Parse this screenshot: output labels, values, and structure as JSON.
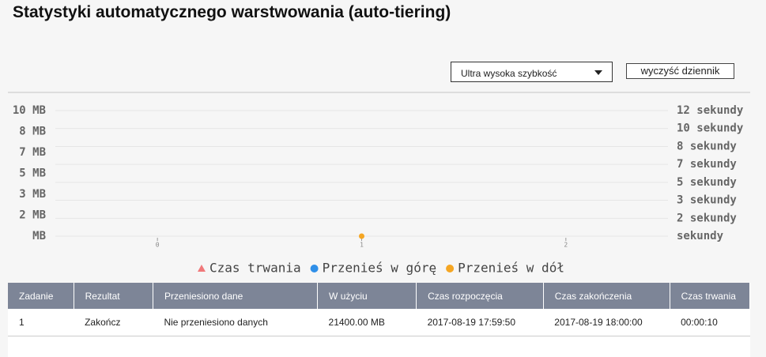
{
  "header": {
    "title": "Statystyki automatycznego warstwowania (auto-tiering)"
  },
  "controls": {
    "select": "Ultra wysoka szybkość",
    "button": "wyczyść dziennik"
  },
  "chart_data": {
    "type": "scatter",
    "xlim": [
      -0.5,
      2.5
    ],
    "xticks": [
      0,
      1,
      2
    ],
    "ylim": [
      0,
      10
    ],
    "yticks": [
      {
        "value": 0,
        "label": "MB"
      },
      {
        "value": 1.67,
        "label": "2 MB"
      },
      {
        "value": 3.33,
        "label": "3 MB"
      },
      {
        "value": 5,
        "label": "5 MB"
      },
      {
        "value": 6.67,
        "label": "7 MB"
      },
      {
        "value": 8.33,
        "label": "8 MB"
      },
      {
        "value": 10,
        "label": "10 MB"
      }
    ],
    "y2lim": [
      0,
      12
    ],
    "y2ticks": [
      {
        "value": 0,
        "label": "sekundy"
      },
      {
        "value": 1.71,
        "label": "2 sekundy"
      },
      {
        "value": 3.43,
        "label": "3 sekundy"
      },
      {
        "value": 5.14,
        "label": "5 sekundy"
      },
      {
        "value": 6.86,
        "label": "7 sekundy"
      },
      {
        "value": 8.57,
        "label": "8 sekundy"
      },
      {
        "value": 10.29,
        "label": "10 sekundy"
      },
      {
        "value": 12,
        "label": "12 sekundy"
      }
    ],
    "grid": true,
    "series": [
      {
        "name": "Czas trwania",
        "color": "#f0787a",
        "marker": "triangle",
        "axis": "y2",
        "x": [],
        "values": []
      },
      {
        "name": "Przenieś w górę",
        "color": "#2f8fe8",
        "marker": "circle",
        "x": [],
        "values": []
      },
      {
        "name": "Przenieś w dół",
        "color": "#f5a623",
        "marker": "circle",
        "x": [
          1
        ],
        "values": [
          0
        ]
      }
    ]
  },
  "table": {
    "headers": [
      "Zadanie",
      "Rezultat",
      "Przeniesiono dane",
      "W użyciu",
      "Czas rozpoczęcia",
      "Czas zakończenia",
      "Czas trwania"
    ],
    "rows": [
      [
        "1",
        "Zakończ",
        "Nie przeniesiono danych",
        "21400.00 MB",
        "2017-08-19 17:59:50",
        "2017-08-19 18:00:00",
        "00:00:10"
      ]
    ]
  }
}
